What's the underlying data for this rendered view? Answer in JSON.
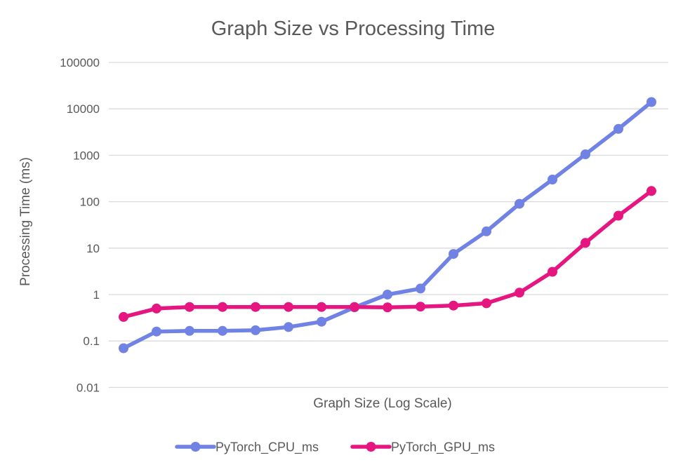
{
  "chart": {
    "background": "#ffffff",
    "text_color": "#595959",
    "gridline_color": "#d9d9d9"
  },
  "chart_data": {
    "type": "line",
    "title": "Graph Size vs Processing Time",
    "xlabel": "Graph Size (Log Scale)",
    "ylabel": "Processing Time (ms)",
    "x_scale": "log",
    "y_scale": "log",
    "ylim": [
      0.01,
      100000
    ],
    "y_ticks": [
      100000,
      10000,
      1000,
      100,
      10,
      1,
      0.1,
      0.01
    ],
    "grid": true,
    "legend_position": "bottom",
    "n_points": 17,
    "series": [
      {
        "name": "PyTorch_CPU_ms",
        "color": "#7082E3",
        "values": [
          0.07,
          0.16,
          0.165,
          0.165,
          0.17,
          0.2,
          0.26,
          0.53,
          1.0,
          1.35,
          7.5,
          23,
          90,
          300,
          1050,
          3700,
          14000
        ]
      },
      {
        "name": "PyTorch_GPU_ms",
        "color": "#E61680",
        "values": [
          0.33,
          0.5,
          0.54,
          0.54,
          0.54,
          0.54,
          0.54,
          0.54,
          0.53,
          0.55,
          0.58,
          0.65,
          1.1,
          3.1,
          13,
          50,
          170
        ]
      }
    ]
  }
}
